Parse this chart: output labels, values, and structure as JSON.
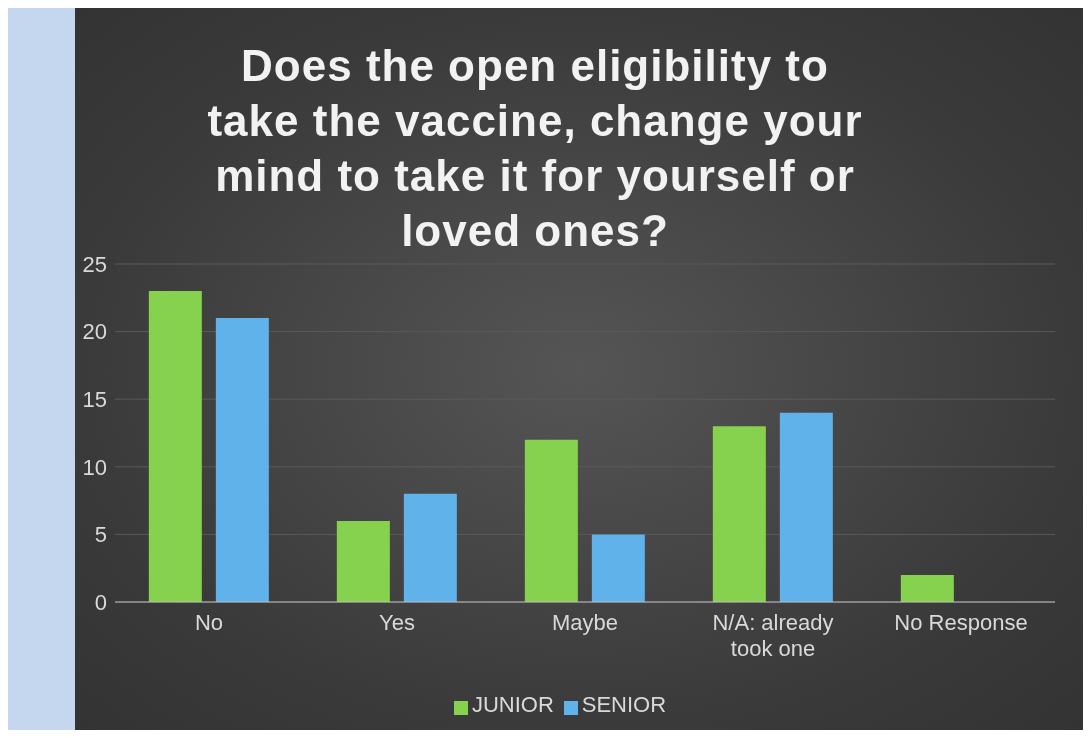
{
  "chart_data": {
    "type": "bar",
    "title": "Does the open eligibility to take the vaccine, change your mind to take it for yourself or loved ones?",
    "categories": [
      "No",
      "Yes",
      "Maybe",
      "N/A: already took one",
      "No Response"
    ],
    "series": [
      {
        "name": "JUNIOR",
        "color": "#86d14e",
        "values": [
          23,
          6,
          12,
          13,
          2
        ]
      },
      {
        "name": "SENIOR",
        "color": "#5fb3ea",
        "values": [
          21,
          8,
          5,
          14,
          0
        ]
      }
    ],
    "ylim": [
      0,
      25
    ],
    "yticks": [
      0,
      5,
      10,
      15,
      20,
      25
    ],
    "grid": "y",
    "legend": "bottom"
  }
}
